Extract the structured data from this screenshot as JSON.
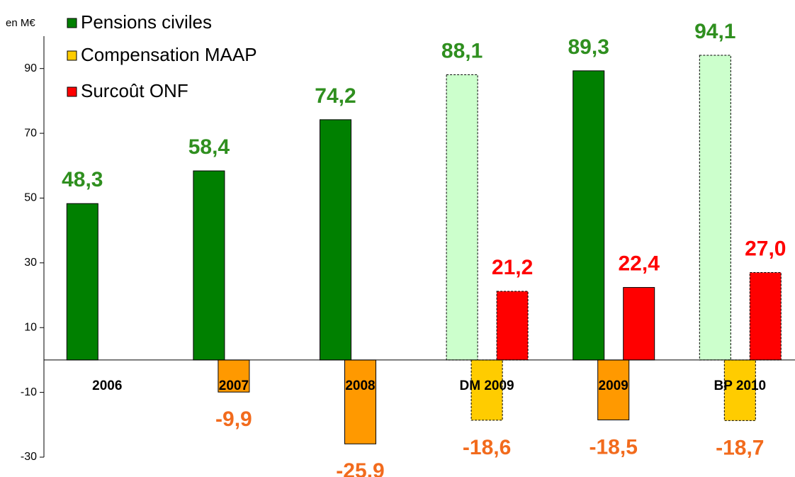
{
  "chart_data": {
    "type": "bar",
    "ylabel": "en M€",
    "categories": [
      "2006",
      "2007",
      "2008",
      "DM 2009",
      "2009",
      "BP 2010"
    ],
    "dashed": [
      false,
      false,
      false,
      true,
      false,
      true
    ],
    "series": [
      {
        "name": "Pensions civiles",
        "color": "#008000",
        "label_color": "#2f8f1f",
        "point_colors": [
          "#008000",
          "#008000",
          "#008000",
          "#ccffcc",
          "#008000",
          "#ccffcc"
        ],
        "values": [
          48.3,
          58.4,
          74.2,
          88.1,
          89.3,
          94.1
        ],
        "value_labels": [
          "48,3",
          "58,4",
          "74,2",
          "88,1",
          "89,3",
          "94,1"
        ]
      },
      {
        "name": "Compensation MAAP",
        "color": "#ffcc00",
        "label_color": "#f26b1d",
        "point_colors": [
          "#ff9900",
          "#ff9900",
          "#ff9900",
          "#ffcc00",
          "#ff9900",
          "#ffcc00"
        ],
        "values": [
          null,
          -9.9,
          -25.9,
          -18.6,
          -18.5,
          -18.7
        ],
        "value_labels": [
          null,
          "-9,9",
          "-25,9",
          "-18,6",
          "-18,5",
          "-18,7"
        ]
      },
      {
        "name": "Surcoût ONF",
        "color": "#ff0000",
        "label_color": "#ff0000",
        "point_colors": [
          "#ff0000",
          "#ff0000",
          "#ff0000",
          "#ff0000",
          "#ff0000",
          "#ff0000"
        ],
        "values": [
          null,
          null,
          null,
          21.2,
          22.4,
          27.0
        ],
        "value_labels": [
          null,
          null,
          null,
          "21,2",
          "22,4",
          "27,0"
        ]
      }
    ],
    "ylim": [
      -30,
      100
    ],
    "yticks": [
      90,
      70,
      50,
      30,
      10,
      -10,
      -30
    ]
  }
}
